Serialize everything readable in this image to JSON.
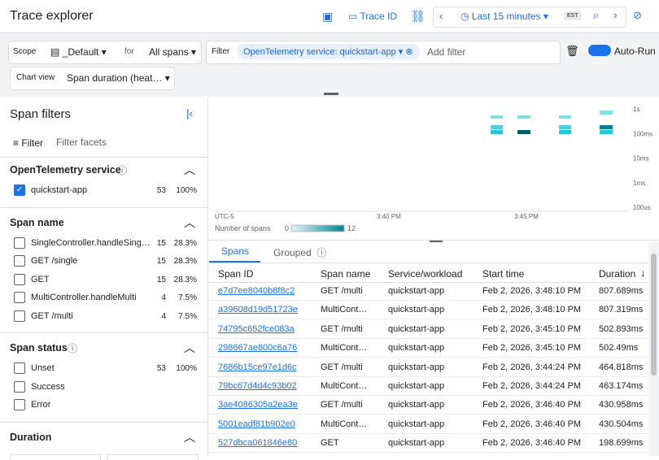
{
  "header": {
    "title": "Trace explorer",
    "trace_id_button": "Trace ID",
    "time_range": "Last 15 minutes",
    "timezone": "EST"
  },
  "toolbar": {
    "scope_label": "Scope",
    "scope_value": "_Default",
    "for_label": "for",
    "spans_value": "All spans",
    "filter_label": "Filter",
    "filter_chip": "OpenTelemetry service: quickstart-app",
    "add_filter": "Add filter",
    "auto_run": "Auto-Run",
    "chart_view_label": "Chart view",
    "chart_view_value": "Span duration (heat…"
  },
  "sidebar": {
    "title": "Span filters",
    "filter_label": "Filter",
    "filter_placeholder": "Filter facets",
    "sections": [
      {
        "title": "OpenTelemetry service",
        "items": [
          {
            "label": "quickstart-app",
            "count": 53,
            "percent": "100%",
            "checked": true
          }
        ]
      },
      {
        "title": "Span name",
        "items": [
          {
            "label": "SingleController.handleSing…",
            "count": 15,
            "percent": "28.3%"
          },
          {
            "label": "GET /single",
            "count": 15,
            "percent": "28.3%"
          },
          {
            "label": "GET",
            "count": 15,
            "percent": "28.3%"
          },
          {
            "label": "MultiController.handleMulti",
            "count": 4,
            "percent": "7.5%"
          },
          {
            "label": "GET /multi",
            "count": 4,
            "percent": "7.5%"
          }
        ]
      },
      {
        "title": "Span status",
        "items": [
          {
            "label": "Unset",
            "count": 53,
            "percent": "100%"
          },
          {
            "label": "Success"
          },
          {
            "label": "Error"
          }
        ]
      },
      {
        "title": "Duration",
        "items": []
      }
    ]
  },
  "heatmap": {
    "y_labels": [
      "1s",
      "100ms",
      "10ms",
      "1ms",
      "100us"
    ],
    "x_labels": [
      "UTC-5",
      "3:40 PM",
      "3:45 PM"
    ],
    "legend_title": "Number of spans",
    "legend_min": "0",
    "legend_max": "12"
  },
  "tabs": [
    "Spans",
    "Grouped"
  ],
  "table": {
    "columns": [
      "Span ID",
      "Span name",
      "Service/workload",
      "Start time",
      "Duration"
    ],
    "rows": [
      [
        "e7d7ee8040b8f8c2",
        "GET /multi",
        "quickstart-app",
        "Feb 2, 2026, 3:48:10 PM",
        "807.689ms"
      ],
      [
        "a39608d19d51723e",
        "MultiCont…",
        "quickstart-app",
        "Feb 2, 2026, 3:48:10 PM",
        "807.319ms"
      ],
      [
        "74795c652fce083a",
        "GET /multi",
        "quickstart-app",
        "Feb 2, 2026, 3:45:10 PM",
        "502.893ms"
      ],
      [
        "298667ae800c6a76",
        "MultiCont…",
        "quickstart-app",
        "Feb 2, 2026, 3:45:10 PM",
        "502.49ms"
      ],
      [
        "7686b15ce97e1d6c",
        "GET /multi",
        "quickstart-app",
        "Feb 2, 2026, 3:44:24 PM",
        "464.818ms"
      ],
      [
        "79bc67d4d4c93b02",
        "MultiCont…",
        "quickstart-app",
        "Feb 2, 2026, 3:44:24 PM",
        "463.174ms"
      ],
      [
        "3ae4086305a2ea3e",
        "GET /multi",
        "quickstart-app",
        "Feb 2, 2026, 3:46:40 PM",
        "430.958ms"
      ],
      [
        "5001eadf81b902e0",
        "MultiCont…",
        "quickstart-app",
        "Feb 2, 2026, 3:46:40 PM",
        "430.504ms"
      ],
      [
        "527dbca061846e80",
        "GET",
        "quickstart-app",
        "Feb 2, 2026, 3:46:40 PM",
        "198.699ms"
      ]
    ]
  }
}
